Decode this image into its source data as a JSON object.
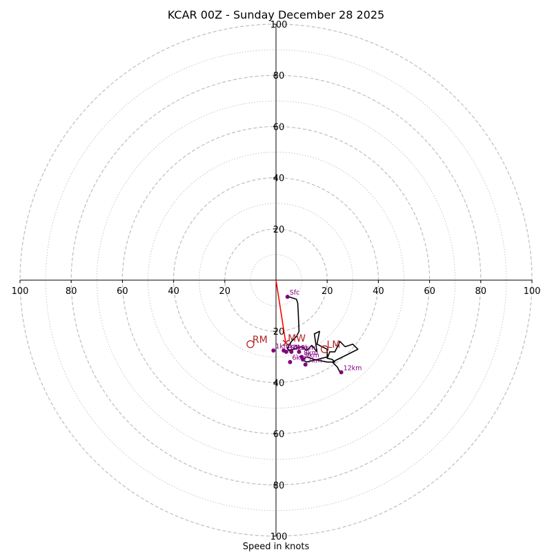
{
  "chart_data": {
    "type": "hodograph",
    "title": "KCAR 00Z - Sunday December 28 2025",
    "xlabel": "Speed in knots",
    "max_speed": 100,
    "ring_step": 20,
    "minor_ring_step": 10,
    "tick_values": [
      20,
      40,
      60,
      80,
      100
    ],
    "hodograph_color": "#000000",
    "marker_color": "#800080",
    "motion_color": "#b22222",
    "shear_color": "#ff0000",
    "grid_color": "#bdbdbd",
    "hodograph": {
      "u": [
        5,
        8,
        8.5,
        8.6,
        8.7,
        9,
        8,
        6,
        5,
        4.5,
        5,
        7,
        10,
        12,
        14,
        16,
        15,
        17,
        16,
        20,
        20,
        16,
        12,
        10,
        12,
        15,
        20,
        23,
        22,
        20,
        21,
        23,
        25,
        27,
        30,
        32,
        28,
        24,
        22,
        24,
        25
      ],
      "v": [
        -6.5,
        -7.5,
        -9,
        -11,
        -13,
        -20,
        -22,
        -24,
        -25.5,
        -26.8,
        -27.5,
        -27,
        -26,
        -27.5,
        -25.5,
        -28,
        -21,
        -20,
        -25,
        -27,
        -30,
        -31,
        -32,
        -31,
        -30,
        -31,
        -32,
        -32,
        -31,
        -30.5,
        -28,
        -28,
        -24,
        -26,
        -25,
        -27,
        -29,
        -31,
        -32,
        -34,
        -36
      ]
    },
    "height_markers": [
      {
        "label": "Sfc",
        "u": 4.5,
        "v": -6.5
      },
      {
        "label": "1km",
        "u": -1,
        "v": -27.5
      },
      {
        "label": "2km",
        "u": 3,
        "v": -27.5
      },
      {
        "label": "3km",
        "u": 4,
        "v": -28
      },
      {
        "label": "4km",
        "u": 6,
        "v": -28
      },
      {
        "label": "5km",
        "u": 9,
        "v": -28
      },
      {
        "label": "6km",
        "u": 5.5,
        "v": -32
      },
      {
        "label": "7km",
        "u": 11.5,
        "v": -33
      },
      {
        "label": "8km",
        "u": 10,
        "v": -30
      },
      {
        "label": "9km",
        "u": 10.5,
        "v": -31
      },
      {
        "label": "12km",
        "u": 25.5,
        "v": -36
      }
    ],
    "storm_motion": [
      {
        "label": "RM",
        "u": -10,
        "v": -25
      },
      {
        "label": "LM",
        "u": 19,
        "v": -27
      },
      {
        "label": "MW",
        "u": 3.8,
        "v": -24.5
      }
    ],
    "shear_vector": {
      "u0": 0,
      "v0": 0,
      "u1": 3.8,
      "v1": -24.5
    }
  }
}
